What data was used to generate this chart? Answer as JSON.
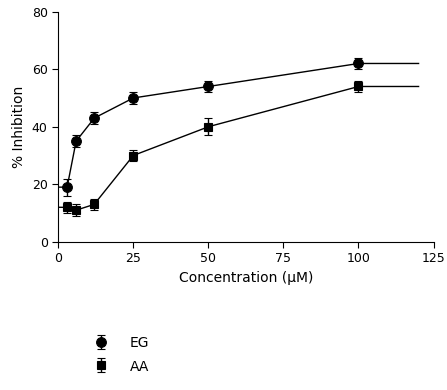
{
  "EG_x": [
    3,
    6,
    12,
    25,
    50,
    100
  ],
  "EG_y": [
    19,
    35,
    43,
    50,
    54,
    62
  ],
  "EG_yerr": [
    3,
    2,
    2,
    2,
    2,
    2
  ],
  "AA_x": [
    3,
    6,
    12,
    25,
    50,
    100
  ],
  "AA_y": [
    12,
    11,
    13,
    30,
    40,
    54
  ],
  "AA_yerr": [
    2,
    2,
    2,
    2,
    3,
    2
  ],
  "xlabel": "Concentration (μM)",
  "ylabel": "% Inhibition",
  "xlim": [
    0,
    125
  ],
  "ylim": [
    0,
    80
  ],
  "xticks": [
    0,
    25,
    50,
    75,
    100,
    125
  ],
  "yticks": [
    0,
    20,
    40,
    60,
    80
  ],
  "legend_labels": [
    "EG",
    "AA"
  ],
  "line_color": "#000000",
  "marker_color": "#000000",
  "background_color": "#ffffff",
  "label_fontsize": 10,
  "tick_fontsize": 9,
  "legend_fontsize": 10
}
